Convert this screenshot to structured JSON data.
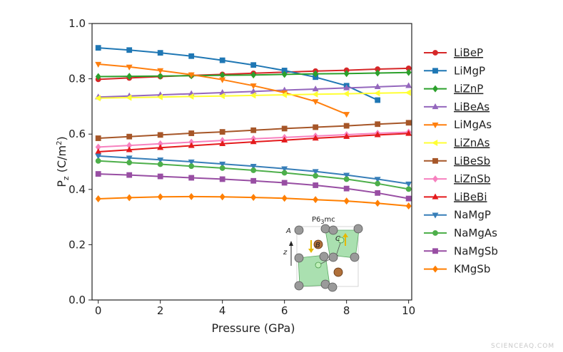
{
  "chart_data": {
    "type": "line",
    "xlabel": "Pressure (GPa)",
    "ylabel_main": "P",
    "ylabel_sub": "z",
    "ylabel_unit": " (C/m",
    "ylabel_sup": "2",
    "ylabel_close": ")",
    "xlim": [
      -0.2,
      10.1
    ],
    "ylim": [
      0.0,
      1.0
    ],
    "xticks": [
      "0",
      "2",
      "4",
      "6",
      "8",
      "10"
    ],
    "yticks": [
      "0.0",
      "0.2",
      "0.4",
      "0.6",
      "0.8",
      "1.0"
    ],
    "legend_position": "right",
    "series": [
      {
        "name": "LiBeP",
        "underline": true,
        "color": "#d62728",
        "marker": "circle",
        "x": [
          0,
          1,
          2,
          3,
          4,
          5,
          6,
          7,
          8,
          9,
          10
        ],
        "y": [
          0.798,
          0.803,
          0.808,
          0.812,
          0.816,
          0.82,
          0.824,
          0.828,
          0.831,
          0.835,
          0.838
        ]
      },
      {
        "name": "LiMgP",
        "underline": false,
        "color": "#1f77b4",
        "marker": "square",
        "x": [
          0,
          1,
          2,
          3,
          4,
          5,
          6,
          7,
          8,
          9
        ],
        "y": [
          0.912,
          0.904,
          0.894,
          0.882,
          0.867,
          0.85,
          0.83,
          0.806,
          0.775,
          0.723
        ]
      },
      {
        "name": "LiZnP",
        "underline": true,
        "color": "#2ca02c",
        "marker": "diamond",
        "x": [
          0,
          1,
          2,
          3,
          4,
          5,
          6,
          7,
          8,
          9,
          10
        ],
        "y": [
          0.808,
          0.809,
          0.81,
          0.811,
          0.813,
          0.814,
          0.816,
          0.818,
          0.819,
          0.821,
          0.823
        ]
      },
      {
        "name": "LiBeAs",
        "underline": true,
        "color": "#9467bd",
        "marker": "triangle-up",
        "x": [
          0,
          1,
          2,
          3,
          4,
          5,
          6,
          7,
          8,
          9,
          10
        ],
        "y": [
          0.734,
          0.738,
          0.742,
          0.746,
          0.75,
          0.754,
          0.759,
          0.763,
          0.767,
          0.771,
          0.775
        ]
      },
      {
        "name": "LiMgAs",
        "underline": false,
        "color": "#ff7f0e",
        "marker": "triangle-down",
        "x": [
          0,
          1,
          2,
          3,
          4,
          5,
          6,
          7,
          8
        ],
        "y": [
          0.853,
          0.843,
          0.83,
          0.815,
          0.797,
          0.775,
          0.75,
          0.718,
          0.672
        ]
      },
      {
        "name": "LiZnAs",
        "underline": true,
        "color": "#ffff33",
        "marker": "triangle-left",
        "x": [
          0,
          1,
          2,
          3,
          4,
          5,
          6,
          7,
          8,
          9,
          10
        ],
        "y": [
          0.73,
          0.732,
          0.734,
          0.736,
          0.738,
          0.74,
          0.742,
          0.744,
          0.746,
          0.748,
          0.75
        ]
      },
      {
        "name": "LiBeSb",
        "underline": true,
        "color": "#a65628",
        "marker": "square",
        "x": [
          0,
          1,
          2,
          3,
          4,
          5,
          6,
          7,
          8,
          9,
          10
        ],
        "y": [
          0.585,
          0.591,
          0.597,
          0.603,
          0.608,
          0.614,
          0.62,
          0.625,
          0.63,
          0.636,
          0.641
        ]
      },
      {
        "name": "LiZnSb",
        "underline": true,
        "color": "#f781bf",
        "marker": "diamond",
        "x": [
          0,
          1,
          2,
          3,
          4,
          5,
          6,
          7,
          8,
          9,
          10
        ],
        "y": [
          0.553,
          0.559,
          0.565,
          0.571,
          0.577,
          0.583,
          0.588,
          0.593,
          0.598,
          0.603,
          0.607
        ]
      },
      {
        "name": "LiBeBi",
        "underline": true,
        "color": "#e41a1c",
        "marker": "triangle-up",
        "x": [
          0,
          1,
          2,
          3,
          4,
          5,
          6,
          7,
          8,
          9,
          10
        ],
        "y": [
          0.536,
          0.543,
          0.551,
          0.558,
          0.565,
          0.572,
          0.578,
          0.585,
          0.591,
          0.597,
          0.602
        ]
      },
      {
        "name": "NaMgP",
        "underline": false,
        "color": "#377eb8",
        "marker": "triangle-down",
        "x": [
          0,
          1,
          2,
          3,
          4,
          5,
          6,
          7,
          8,
          9,
          10
        ],
        "y": [
          0.521,
          0.514,
          0.507,
          0.5,
          0.492,
          0.484,
          0.475,
          0.465,
          0.452,
          0.437,
          0.42
        ]
      },
      {
        "name": "NaMgAs",
        "underline": false,
        "color": "#4daf4a",
        "marker": "circle",
        "x": [
          0,
          1,
          2,
          3,
          4,
          5,
          6,
          7,
          8,
          9,
          10
        ],
        "y": [
          0.503,
          0.497,
          0.491,
          0.484,
          0.477,
          0.469,
          0.46,
          0.449,
          0.437,
          0.421,
          0.401
        ]
      },
      {
        "name": "NaMgSb",
        "underline": false,
        "color": "#984ea3",
        "marker": "square",
        "x": [
          0,
          1,
          2,
          3,
          4,
          5,
          6,
          7,
          8,
          9,
          10
        ],
        "y": [
          0.456,
          0.452,
          0.447,
          0.442,
          0.437,
          0.431,
          0.424,
          0.415,
          0.403,
          0.387,
          0.367
        ]
      },
      {
        "name": "KMgSb",
        "underline": false,
        "color": "#ff7f00",
        "marker": "diamond",
        "x": [
          0,
          1,
          2,
          3,
          4,
          5,
          6,
          7,
          8,
          9,
          10
        ],
        "y": [
          0.366,
          0.37,
          0.373,
          0.374,
          0.373,
          0.371,
          0.368,
          0.363,
          0.358,
          0.35,
          0.34
        ]
      }
    ]
  },
  "inset": {
    "space_group_prefix": "P6",
    "space_group_sub": "3",
    "space_group_suffix": "mc",
    "label_A": "A",
    "label_B": "B",
    "label_C": "C",
    "label_z": "z"
  },
  "watermark": "SCIENCEAQ.COM"
}
